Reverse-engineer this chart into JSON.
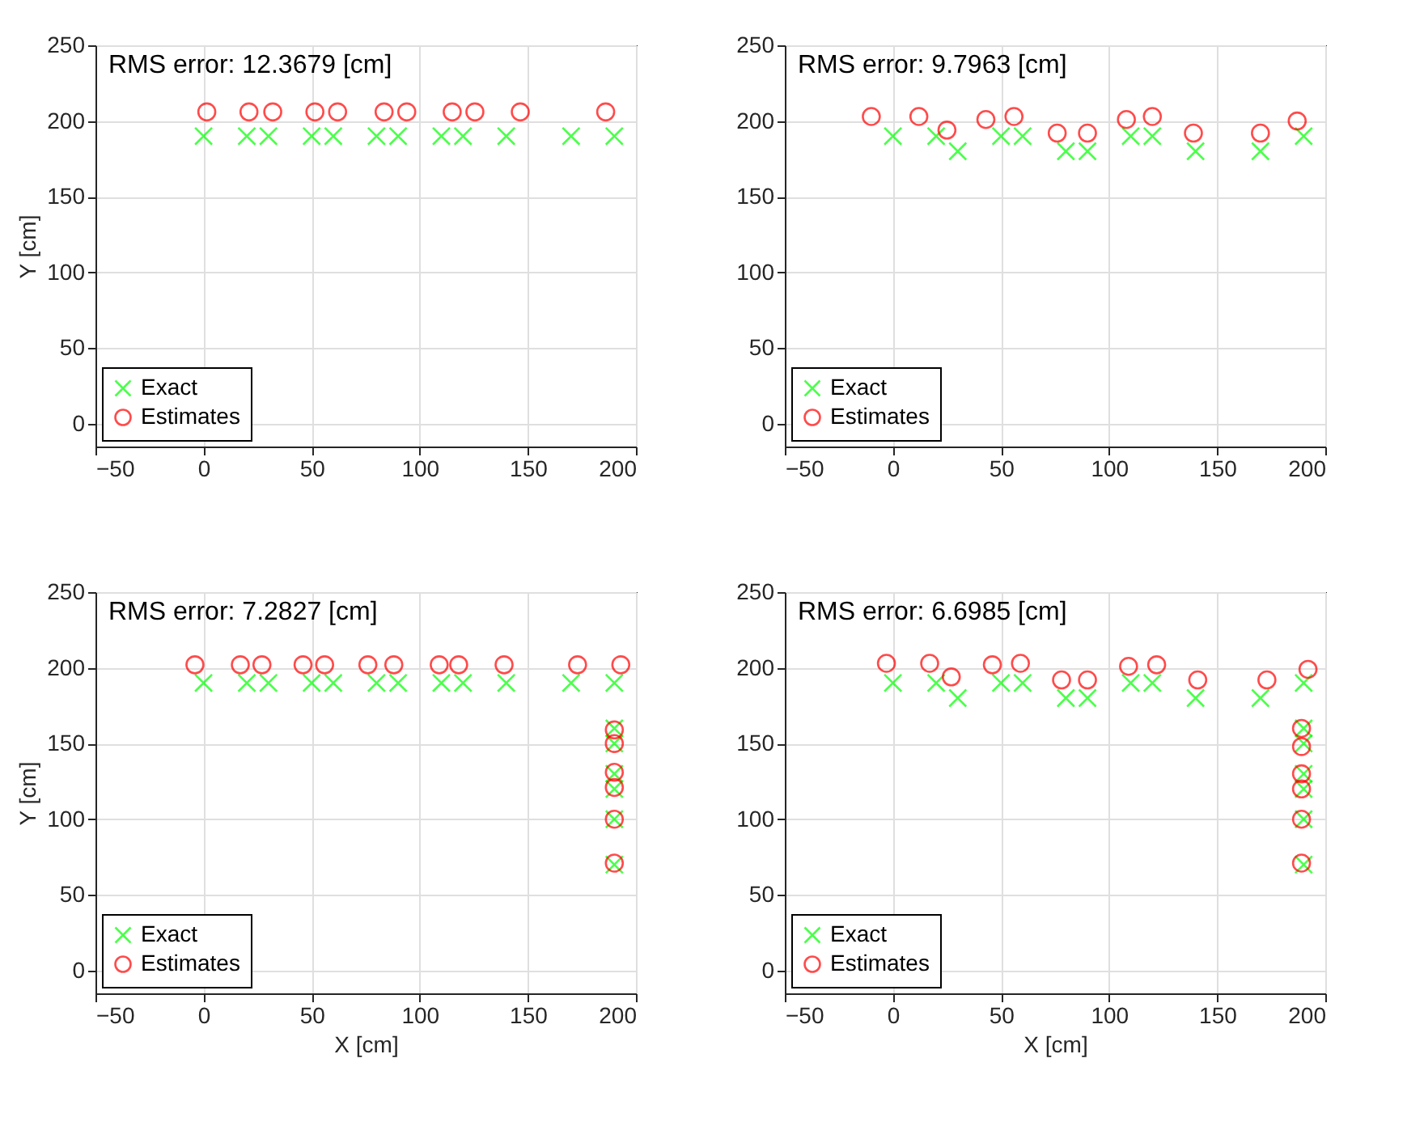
{
  "chart_data": [
    {
      "type": "scatter",
      "ylabel": "Y [cm]",
      "annotations": [
        "RMS error: 12.3679 [cm]"
      ],
      "xlim": [
        -50,
        200
      ],
      "ylim": [
        -15,
        250
      ],
      "xticks": [
        -50,
        0,
        50,
        100,
        150,
        200
      ],
      "yticks": [
        0,
        50,
        100,
        150,
        200,
        250
      ],
      "grid": true,
      "legend": "bottom left",
      "series": [
        {
          "name": "Exact",
          "color": "#00ff00",
          "marker": "cross",
          "x": [
            0,
            20,
            30,
            50,
            60,
            80,
            90,
            110,
            120,
            140,
            170,
            190
          ],
          "values": [
            190,
            190,
            190,
            190,
            190,
            190,
            190,
            190,
            190,
            190,
            190,
            190
          ]
        },
        {
          "name": "Estimates",
          "color": "#ff0000",
          "marker": "circle",
          "x": [
            1.5,
            21,
            32,
            51.5,
            62,
            83.5,
            94,
            115,
            125.5,
            146.5,
            186
          ],
          "values": [
            206,
            206,
            206,
            206,
            206,
            206,
            206,
            206,
            206,
            206,
            206
          ]
        }
      ]
    },
    {
      "type": "scatter",
      "annotations": [
        "RMS error: 9.7963 [cm]"
      ],
      "xlim": [
        -50,
        200
      ],
      "ylim": [
        -15,
        250
      ],
      "xticks": [
        -50,
        0,
        50,
        100,
        150,
        200
      ],
      "yticks": [
        0,
        50,
        100,
        150,
        200,
        250
      ],
      "grid": true,
      "legend": "bottom left",
      "series": [
        {
          "name": "Exact",
          "color": "#00ff00",
          "marker": "cross",
          "x": [
            0,
            20,
            30,
            50,
            60,
            80,
            90,
            110,
            120,
            140,
            170,
            190
          ],
          "values": [
            190,
            190,
            180,
            190,
            190,
            180,
            180,
            190,
            190,
            180,
            180,
            190
          ]
        },
        {
          "name": "Estimates",
          "color": "#ff0000",
          "marker": "circle",
          "x": [
            -10,
            12,
            25,
            43,
            56,
            76,
            90,
            108,
            120,
            139,
            170,
            187
          ],
          "values": [
            203,
            203,
            194,
            201,
            203,
            192,
            192,
            201,
            203,
            192,
            192,
            200
          ]
        }
      ]
    },
    {
      "type": "scatter",
      "xlabel": "X [cm]",
      "ylabel": "Y [cm]",
      "annotations": [
        "RMS error: 7.2827 [cm]"
      ],
      "xlim": [
        -50,
        200
      ],
      "ylim": [
        -15,
        250
      ],
      "xticks": [
        -50,
        0,
        50,
        100,
        150,
        200
      ],
      "yticks": [
        0,
        50,
        100,
        150,
        200,
        250
      ],
      "grid": true,
      "legend": "bottom left",
      "series": [
        {
          "name": "Exact",
          "color": "#00ff00",
          "marker": "cross",
          "x": [
            0,
            20,
            30,
            50,
            60,
            80,
            90,
            110,
            120,
            140,
            170,
            190,
            190,
            190,
            190,
            190,
            190,
            190
          ],
          "values": [
            190,
            190,
            190,
            190,
            190,
            190,
            190,
            190,
            190,
            190,
            190,
            190,
            160,
            150,
            130,
            120,
            100,
            70
          ]
        },
        {
          "name": "Estimates",
          "color": "#ff0000",
          "marker": "circle",
          "x": [
            -4,
            17,
            27,
            46,
            56,
            76,
            88,
            109,
            118,
            139,
            173,
            193,
            190,
            190,
            190,
            190,
            190,
            190
          ],
          "values": [
            202,
            202,
            202,
            202,
            202,
            202,
            202,
            202,
            202,
            202,
            202,
            202,
            159,
            150,
            131,
            121,
            100,
            71
          ]
        }
      ]
    },
    {
      "type": "scatter",
      "xlabel": "X [cm]",
      "annotations": [
        "RMS error: 6.6985 [cm]"
      ],
      "xlim": [
        -50,
        200
      ],
      "ylim": [
        -15,
        250
      ],
      "xticks": [
        -50,
        0,
        50,
        100,
        150,
        200
      ],
      "yticks": [
        0,
        50,
        100,
        150,
        200,
        250
      ],
      "grid": true,
      "legend": "bottom left",
      "series": [
        {
          "name": "Exact",
          "color": "#00ff00",
          "marker": "cross",
          "x": [
            0,
            20,
            30,
            50,
            60,
            80,
            90,
            110,
            120,
            140,
            170,
            190,
            190,
            190,
            190,
            190,
            190,
            190
          ],
          "values": [
            190,
            190,
            180,
            190,
            190,
            180,
            180,
            190,
            190,
            180,
            180,
            190,
            160,
            150,
            130,
            120,
            100,
            70
          ]
        },
        {
          "name": "Estimates",
          "color": "#ff0000",
          "marker": "circle",
          "x": [
            -3,
            17,
            27,
            46,
            59,
            78,
            90,
            109,
            122,
            141,
            173,
            192,
            189,
            189,
            189,
            189,
            189,
            189
          ],
          "values": [
            203,
            203,
            194,
            202,
            203,
            192,
            192,
            201,
            202,
            192,
            192,
            199,
            160,
            148,
            130,
            120,
            100,
            71
          ]
        }
      ]
    }
  ]
}
